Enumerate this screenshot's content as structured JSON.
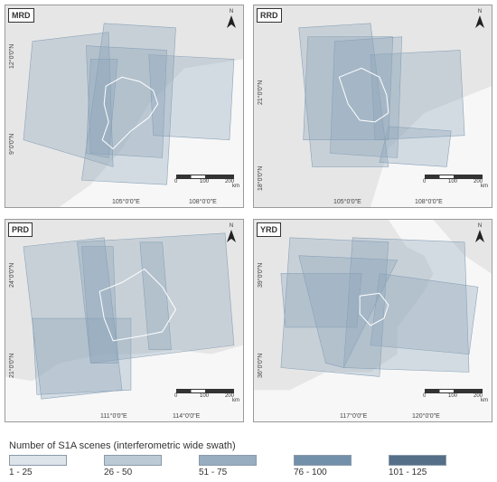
{
  "panels": [
    {
      "label": "MRD",
      "lat_ticks": [
        "12°0'0\"N",
        "9°0'0\"N"
      ],
      "lon_ticks": [
        "105°0'0\"E",
        "108°0'0\"E"
      ],
      "scale": {
        "ticks": [
          "0",
          "100",
          "200"
        ],
        "unit": "km"
      }
    },
    {
      "label": "RRD",
      "lat_ticks": [
        "21°0'0\"N",
        "18°0'0\"N"
      ],
      "lon_ticks": [
        "105°0'0\"E",
        "108°0'0\"E"
      ],
      "scale": {
        "ticks": [
          "0",
          "100",
          "200"
        ],
        "unit": "km"
      }
    },
    {
      "label": "PRD",
      "lat_ticks": [
        "24°0'0\"N",
        "21°0'0\"N"
      ],
      "lon_ticks": [
        "111°0'0\"E",
        "114°0'0\"E"
      ],
      "scale": {
        "ticks": [
          "0",
          "100",
          "200"
        ],
        "unit": "km"
      }
    },
    {
      "label": "YRD",
      "lat_ticks": [
        "39°0'0\"N",
        "36°0'0\"N"
      ],
      "lon_ticks": [
        "117°0'0\"E",
        "120°0'0\"E"
      ],
      "scale": {
        "ticks": [
          "0",
          "100",
          "200"
        ],
        "unit": "km"
      }
    }
  ],
  "north_label": "N",
  "legend": {
    "title": "Number of S1A scenes (interferometric wide swath)",
    "classes": [
      {
        "label": "1 - 25",
        "color": "#dde4ea"
      },
      {
        "label": "26 - 50",
        "color": "#bccad6"
      },
      {
        "label": "51 - 75",
        "color": "#98aec0"
      },
      {
        "label": "76 - 100",
        "color": "#7290aa"
      },
      {
        "label": "101 - 125",
        "color": "#546f87"
      }
    ]
  },
  "colors": {
    "land": "#e6e6e6",
    "sea": "#f7f7f7",
    "swath": "#7d97ae",
    "outline": "#ffffff"
  }
}
